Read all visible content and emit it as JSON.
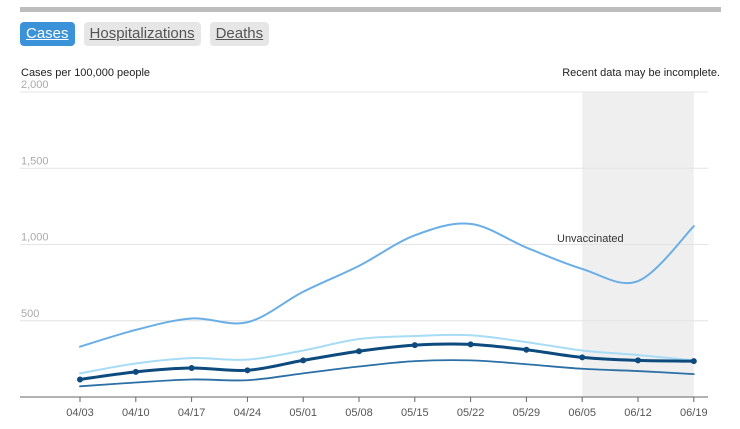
{
  "tabs": [
    {
      "label": "Cases",
      "active": true
    },
    {
      "label": "Hospitalizations",
      "active": false
    },
    {
      "label": "Deaths",
      "active": false
    }
  ],
  "colors": {
    "tab_active": "#3a92d8",
    "unvaccinated": "#6aaee6",
    "light_series": "#a6dcf5",
    "main_series": "#0d4b7e",
    "lower_series": "#2a6fa6",
    "incomplete_band": "#efefef"
  },
  "chart_data": {
    "type": "line",
    "ylabel": "Cases per 100,000 people",
    "note": "Recent data may be incomplete.",
    "ylim": [
      0,
      2000
    ],
    "yticks": [
      500,
      1000,
      1500,
      2000
    ],
    "ytick_labels": [
      "500",
      "1,000",
      "1,500",
      "2,000"
    ],
    "x": [
      "04/03",
      "04/10",
      "04/17",
      "04/24",
      "05/01",
      "05/08",
      "05/15",
      "05/22",
      "05/29",
      "06/05",
      "06/12",
      "06/19"
    ],
    "incomplete_range": [
      "06/05",
      "06/19"
    ],
    "annotation": "Unvaccinated",
    "grid": true,
    "series": [
      {
        "key": "unvaccinated",
        "values": [
          330,
          440,
          515,
          490,
          690,
          860,
          1060,
          1135,
          980,
          840,
          760,
          1120
        ]
      },
      {
        "key": "light",
        "values": [
          155,
          220,
          255,
          245,
          305,
          380,
          400,
          405,
          360,
          305,
          275,
          240
        ]
      },
      {
        "key": "main",
        "values": [
          115,
          165,
          190,
          175,
          240,
          300,
          340,
          345,
          310,
          260,
          240,
          235
        ]
      },
      {
        "key": "lower",
        "values": [
          70,
          95,
          115,
          110,
          155,
          200,
          235,
          240,
          215,
          185,
          170,
          150
        ]
      }
    ]
  }
}
